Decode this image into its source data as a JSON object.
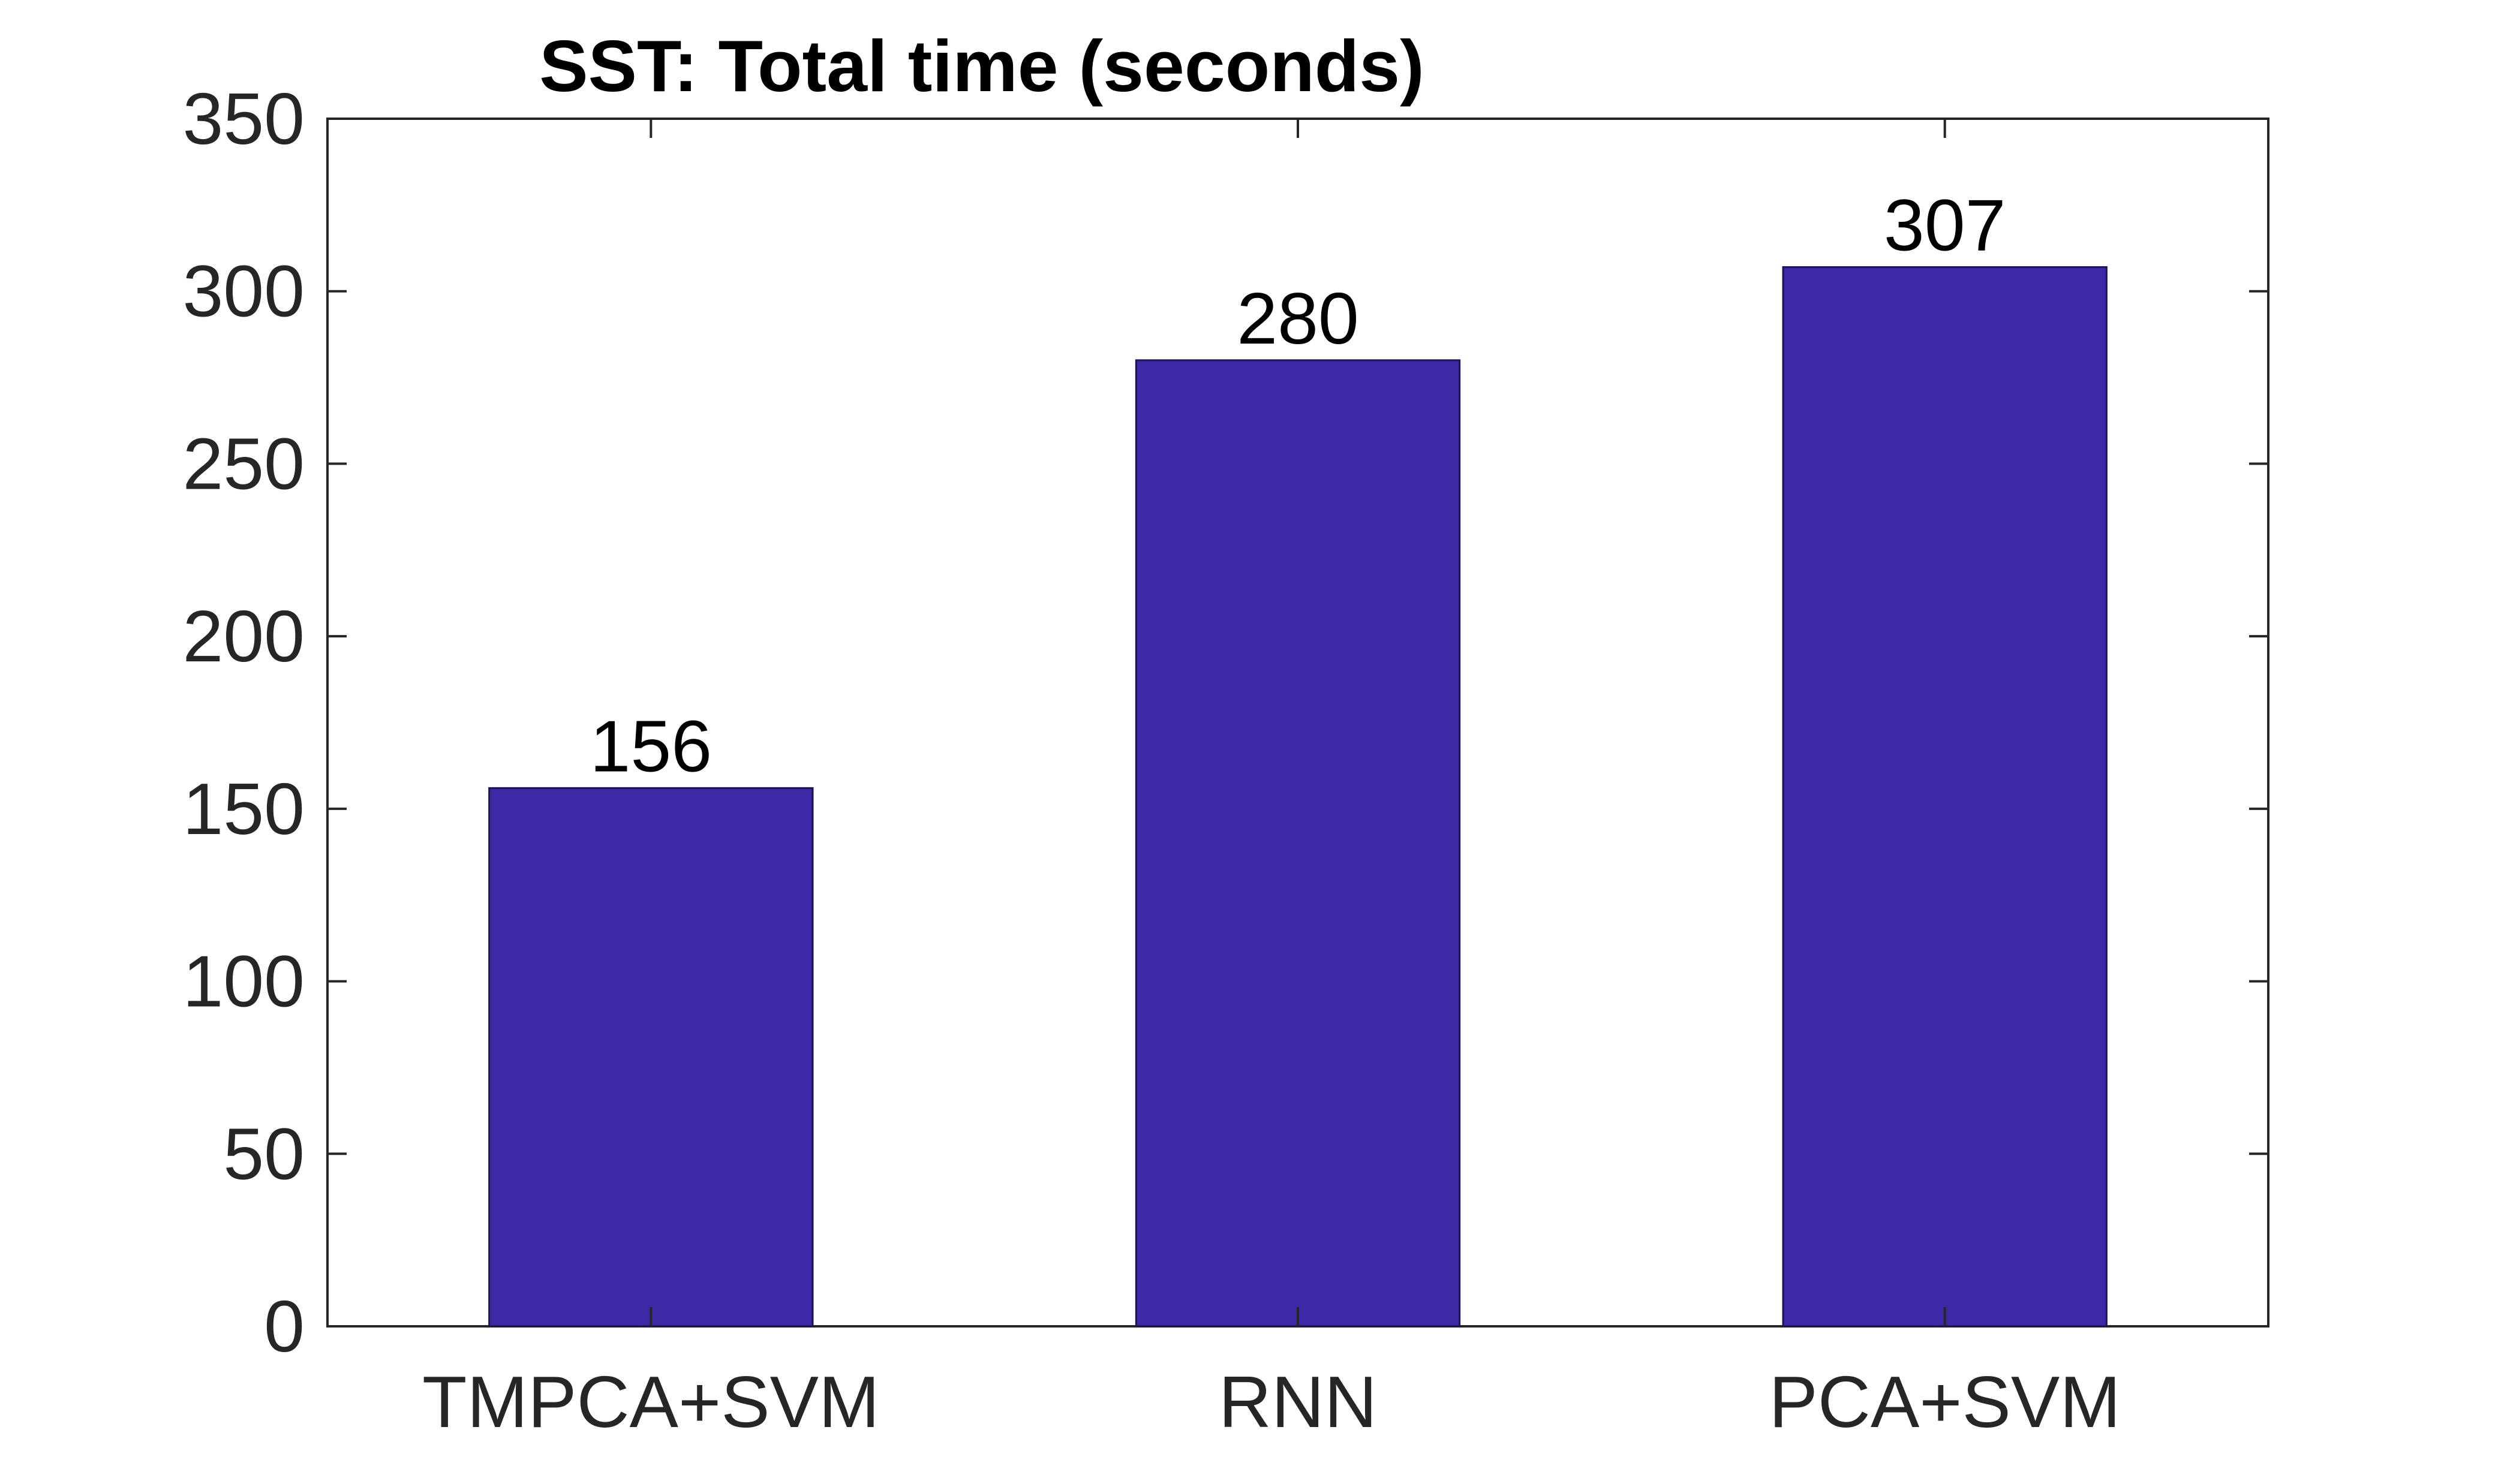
{
  "chart_data": {
    "type": "bar",
    "title": "SST: Total time (seconds)",
    "xlabel": "",
    "ylabel": "",
    "categories": [
      "TMPCA+SVM",
      "RNN",
      "PCA+SVM"
    ],
    "values": [
      156,
      280,
      307
    ],
    "data_labels": [
      "156",
      "280",
      "307"
    ],
    "ylim": [
      0,
      350
    ],
    "yticks": [
      0,
      50,
      100,
      150,
      200,
      250,
      300,
      350
    ],
    "ytick_labels": [
      "0",
      "50",
      "100",
      "150",
      "200",
      "250",
      "300",
      "350"
    ],
    "grid": false,
    "legend": "none",
    "colors": {
      "bar_fill": "#3C28A5",
      "bar_stroke": "#1E1450",
      "axis": "#262626",
      "text": "#000000"
    }
  }
}
